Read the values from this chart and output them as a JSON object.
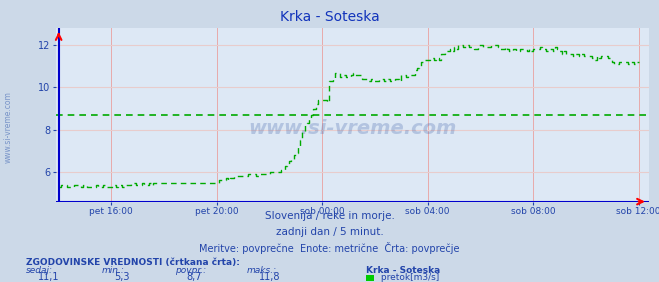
{
  "title": "Krka - Soteska",
  "bg_color": "#ccd9e8",
  "plot_bg_color": "#dde8f5",
  "grid_color_v": "#e8aaaa",
  "grid_color_h": "#e8cccc",
  "line_color": "#00aa00",
  "avg_line_color": "#00aa00",
  "axis_color": "#0000cc",
  "text_color": "#2244aa",
  "title_color": "#1133bb",
  "ylim": [
    4.6,
    12.8
  ],
  "yticks": [
    6,
    8,
    10,
    12
  ],
  "avg_value": 8.7,
  "min_value": 5.3,
  "max_value": 11.8,
  "current_value": 11.1,
  "xlabel_times": [
    "pet 16:00",
    "pet 20:00",
    "sob 00:00",
    "sob 04:00",
    "sob 08:00",
    "sob 12:00"
  ],
  "subtitle1": "Slovenija / reke in morje.",
  "subtitle2": "zadnji dan / 5 minut.",
  "subtitle3": "Meritve: povprečne  Enote: metrične  Črta: povprečje",
  "legend_title": "Krka - Soteska",
  "legend_label": " pretok[m3/s]",
  "stat_label1": "sedaj:",
  "stat_label2": "min.:",
  "stat_label3": "povpr.:",
  "stat_label4": "maks.:",
  "hist_label": "ZGODOVINSKE VREDNOSTI (črtkana črta):",
  "watermark": "www.si-vreme.com",
  "left_watermark": "www.si-vreme.com"
}
